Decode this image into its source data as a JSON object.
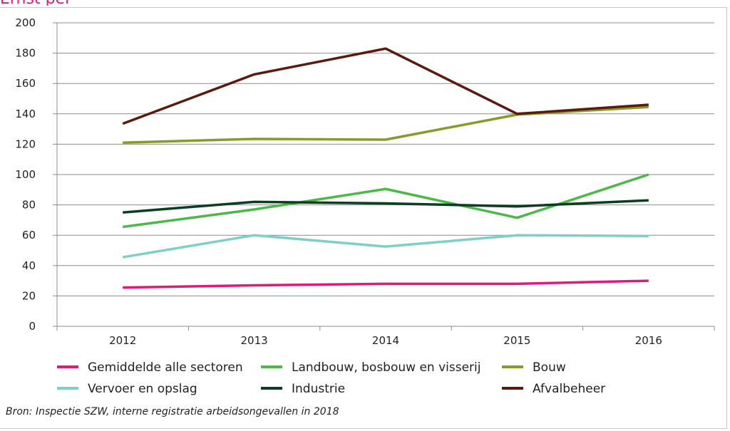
{
  "chart_data": {
    "type": "line",
    "title": "",
    "xlabel": "",
    "ylabel": "",
    "categories": [
      "2012",
      "2013",
      "2014",
      "2015",
      "2016"
    ],
    "ylim": [
      0,
      200
    ],
    "yticks": [
      0,
      20,
      40,
      60,
      80,
      100,
      120,
      140,
      160,
      180,
      200
    ],
    "grid": "horizontal",
    "legend_position": "bottom",
    "series": [
      {
        "name": "Gemiddelde alle sectoren",
        "color": "#e0197d",
        "values": [
          25.5,
          27,
          28,
          28,
          30
        ]
      },
      {
        "name": "Landbouw, bosbouw en visserij",
        "color": "#4cb848",
        "values": [
          65.5,
          77,
          90.5,
          71.5,
          100
        ]
      },
      {
        "name": "Bouw",
        "color": "#8a9a2a",
        "values": [
          121,
          123.5,
          123,
          139.5,
          144.5
        ]
      },
      {
        "name": "Vervoer en opslag",
        "color": "#7fcfc6",
        "values": [
          45.5,
          60,
          52.5,
          60,
          59.5
        ]
      },
      {
        "name": "Industrie",
        "color": "#0b3d20",
        "values": [
          75,
          82,
          81,
          79,
          83
        ]
      },
      {
        "name": "Afvalbeheer",
        "color": "#5a1a0e",
        "values": [
          133.5,
          166,
          183,
          140,
          146
        ]
      }
    ]
  },
  "source_text": "Bron: Inspectie SZW, interne registratie arbeidsongevallen in 2018"
}
